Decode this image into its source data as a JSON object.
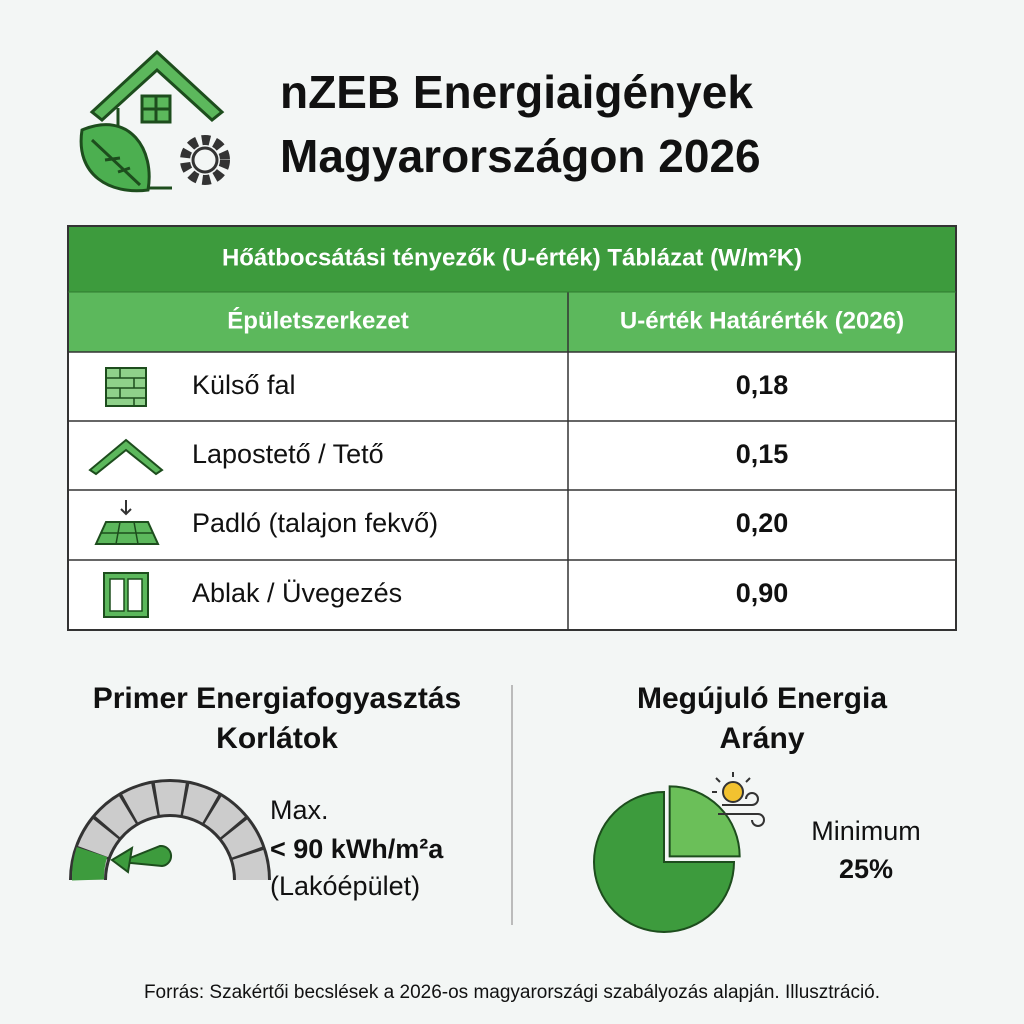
{
  "header": {
    "title_line1": "nZEB Energiaigények",
    "title_line2": "Magyarországon 2026"
  },
  "table": {
    "caption": "Hőátbocsátási tényezők (U-érték) Táblázat (W/m²K)",
    "columns": [
      "Épületszerkezet",
      "U-érték Határérték (2026)"
    ],
    "rows": [
      [
        "Külső fal",
        "0,18"
      ],
      [
        "Lapostető / Tető",
        "0,15"
      ],
      [
        "Padló (talajon fekvő)",
        "0,20"
      ],
      [
        "Ablak / Üvegezés",
        "0,90"
      ]
    ]
  },
  "primary": {
    "title_line1": "Primer Energiafogyasztás",
    "title_line2": "Korlátok",
    "line1": "Max.",
    "line2": "< 90 kWh/m²a",
    "line3": "(Lakóépület)"
  },
  "renewable": {
    "title_line1": "Megújuló Energia",
    "title_line2": "Arány",
    "label": "Minimum",
    "value": 25,
    "value_label": "25%"
  },
  "footer": "Forrás: Szakértői becslések a 2026-os magyarországi szabályozás alapján. Illusztráció."
}
